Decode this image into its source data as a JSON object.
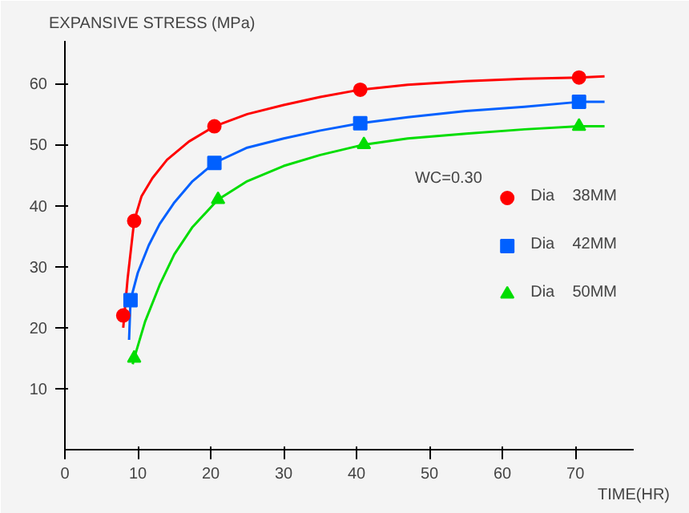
{
  "chart_data": {
    "type": "line",
    "ylabel": "EXPANSIVE STRESS (MPa)",
    "xlabel": "TIME(HR)",
    "xlim": [
      0,
      78
    ],
    "ylim": [
      0,
      67
    ],
    "xticks": [
      0,
      10,
      20,
      30,
      40,
      50,
      60,
      70
    ],
    "yticks": [
      10,
      20,
      30,
      40,
      50,
      60
    ],
    "grid": false,
    "legend": "right",
    "line_style": "solid",
    "annotations": [
      "WC=0.30"
    ],
    "series": [
      {
        "color": "#ff0000",
        "x": [
          8,
          8.6,
          9.5,
          10.5,
          12,
          14,
          17,
          20.5,
          25,
          30,
          35,
          40.5,
          47,
          55,
          63,
          70.5,
          74
        ],
        "values": [
          20,
          28,
          37.5,
          41.5,
          44.5,
          47.5,
          50.5,
          53,
          55,
          56.5,
          57.8,
          59,
          59.8,
          60.4,
          60.8,
          61,
          61.2
        ]
      },
      {
        "color": "#0060ff",
        "x": [
          8.8,
          9,
          10,
          11.5,
          13,
          15,
          17.5,
          20.5,
          25,
          30,
          35,
          40.5,
          47,
          55,
          63,
          70.5,
          74
        ],
        "values": [
          18,
          24.5,
          29,
          33.5,
          37,
          40.5,
          44,
          47,
          49.5,
          51,
          52.3,
          53.5,
          54.5,
          55.5,
          56.2,
          57,
          57
        ]
      },
      {
        "color": "#00dd00",
        "x": [
          9.3,
          9.5,
          11,
          13,
          15,
          17.5,
          21,
          25,
          30,
          35,
          41,
          47,
          55,
          63,
          70.5,
          74
        ],
        "values": [
          14,
          15,
          21,
          27,
          32,
          36.5,
          41,
          44,
          46.5,
          48.3,
          50,
          51,
          51.8,
          52.5,
          53,
          53
        ]
      },
      {
        "type": "scatter",
        "name": "Dia    38MM",
        "color": "#ff0000",
        "marker": "circle",
        "x": [
          8,
          9.5,
          20.5,
          40.5,
          70.5
        ],
        "values": [
          22,
          37.5,
          53,
          59,
          61
        ]
      },
      {
        "type": "scatter",
        "name": "Dia    42MM",
        "color": "#0060ff",
        "marker": "square",
        "x": [
          9,
          20.5,
          40.5,
          70.5
        ],
        "values": [
          24.5,
          47,
          53.5,
          57
        ]
      },
      {
        "type": "scatter",
        "name": "Dia    50MM",
        "color": "#00dd00",
        "marker": "triangle",
        "x": [
          9.5,
          21,
          41,
          70.5
        ],
        "values": [
          15,
          41,
          50,
          53
        ]
      }
    ]
  }
}
